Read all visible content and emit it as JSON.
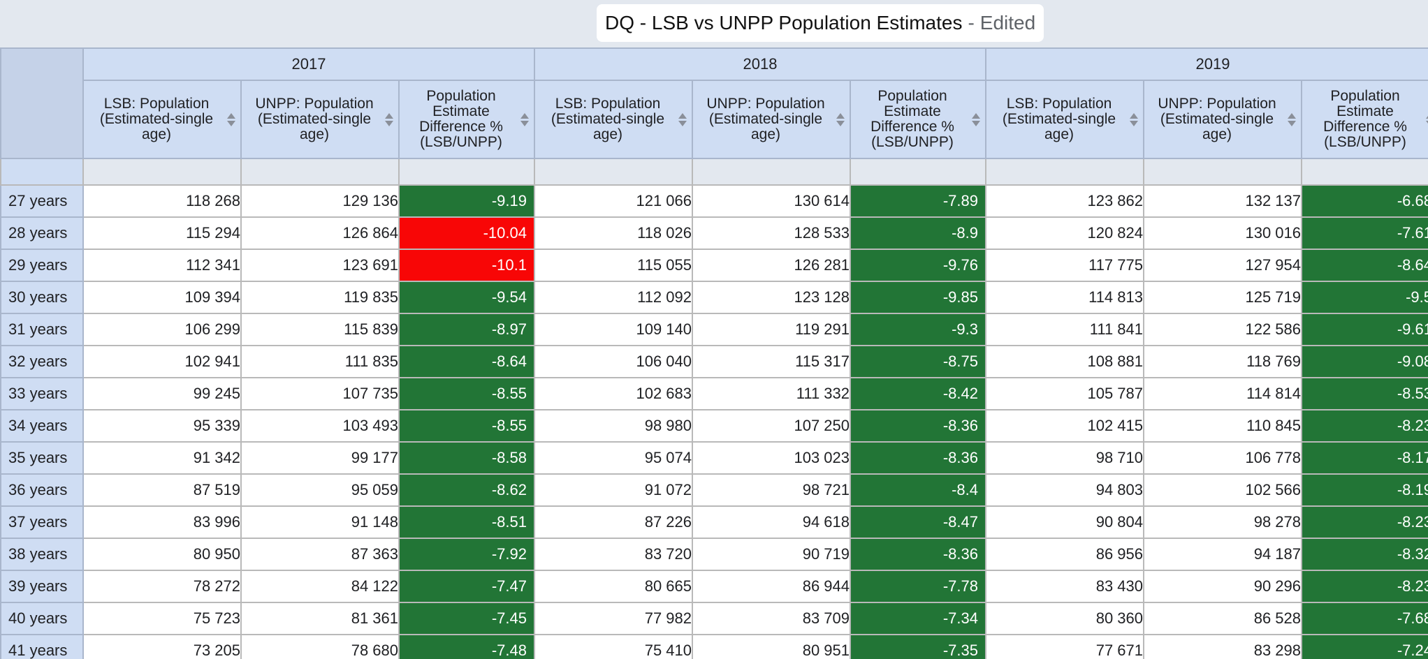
{
  "title": {
    "main": "DQ - LSB vs UNPP Population Estimates",
    "separator": "-",
    "status": "Edited"
  },
  "colors": {
    "good": "#227536",
    "bad": "#f80606",
    "header_bg": "#cfddf3"
  },
  "years": [
    "2017",
    "2018",
    "2019"
  ],
  "measures": [
    "LSB: Population (Estimated-single age)",
    "UNPP: Population (Estimated-single age)",
    "Population Estimate Difference % (LSB/UNPP)"
  ],
  "rows": [
    {
      "label": "27 years",
      "cells": [
        {
          "lsb": "118 268",
          "unpp": "129 136",
          "diff": "-9.19",
          "status": "green"
        },
        {
          "lsb": "121 066",
          "unpp": "130 614",
          "diff": "-7.89",
          "status": "green"
        },
        {
          "lsb": "123 862",
          "unpp": "132 137",
          "diff": "-6.68",
          "status": "green"
        }
      ]
    },
    {
      "label": "28 years",
      "cells": [
        {
          "lsb": "115 294",
          "unpp": "126 864",
          "diff": "-10.04",
          "status": "red"
        },
        {
          "lsb": "118 026",
          "unpp": "128 533",
          "diff": "-8.9",
          "status": "green"
        },
        {
          "lsb": "120 824",
          "unpp": "130 016",
          "diff": "-7.61",
          "status": "green"
        }
      ]
    },
    {
      "label": "29 years",
      "cells": [
        {
          "lsb": "112 341",
          "unpp": "123 691",
          "diff": "-10.1",
          "status": "red"
        },
        {
          "lsb": "115 055",
          "unpp": "126 281",
          "diff": "-9.76",
          "status": "green"
        },
        {
          "lsb": "117 775",
          "unpp": "127 954",
          "diff": "-8.64",
          "status": "green"
        }
      ]
    },
    {
      "label": "30 years",
      "cells": [
        {
          "lsb": "109 394",
          "unpp": "119 835",
          "diff": "-9.54",
          "status": "green"
        },
        {
          "lsb": "112 092",
          "unpp": "123 128",
          "diff": "-9.85",
          "status": "green"
        },
        {
          "lsb": "114 813",
          "unpp": "125 719",
          "diff": "-9.5",
          "status": "green"
        }
      ]
    },
    {
      "label": "31 years",
      "cells": [
        {
          "lsb": "106 299",
          "unpp": "115 839",
          "diff": "-8.97",
          "status": "green"
        },
        {
          "lsb": "109 140",
          "unpp": "119 291",
          "diff": "-9.3",
          "status": "green"
        },
        {
          "lsb": "111 841",
          "unpp": "122 586",
          "diff": "-9.61",
          "status": "green"
        }
      ]
    },
    {
      "label": "32 years",
      "cells": [
        {
          "lsb": "102 941",
          "unpp": "111 835",
          "diff": "-8.64",
          "status": "green"
        },
        {
          "lsb": "106 040",
          "unpp": "115 317",
          "diff": "-8.75",
          "status": "green"
        },
        {
          "lsb": "108 881",
          "unpp": "118 769",
          "diff": "-9.08",
          "status": "green"
        }
      ]
    },
    {
      "label": "33 years",
      "cells": [
        {
          "lsb": "99 245",
          "unpp": "107 735",
          "diff": "-8.55",
          "status": "green"
        },
        {
          "lsb": "102 683",
          "unpp": "111 332",
          "diff": "-8.42",
          "status": "green"
        },
        {
          "lsb": "105 787",
          "unpp": "114 814",
          "diff": "-8.53",
          "status": "green"
        }
      ]
    },
    {
      "label": "34 years",
      "cells": [
        {
          "lsb": "95 339",
          "unpp": "103 493",
          "diff": "-8.55",
          "status": "green"
        },
        {
          "lsb": "98 980",
          "unpp": "107 250",
          "diff": "-8.36",
          "status": "green"
        },
        {
          "lsb": "102 415",
          "unpp": "110 845",
          "diff": "-8.23",
          "status": "green"
        }
      ]
    },
    {
      "label": "35 years",
      "cells": [
        {
          "lsb": "91 342",
          "unpp": "99 177",
          "diff": "-8.58",
          "status": "green"
        },
        {
          "lsb": "95 074",
          "unpp": "103 023",
          "diff": "-8.36",
          "status": "green"
        },
        {
          "lsb": "98 710",
          "unpp": "106 778",
          "diff": "-8.17",
          "status": "green"
        }
      ]
    },
    {
      "label": "36 years",
      "cells": [
        {
          "lsb": "87 519",
          "unpp": "95 059",
          "diff": "-8.62",
          "status": "green"
        },
        {
          "lsb": "91 072",
          "unpp": "98 721",
          "diff": "-8.4",
          "status": "green"
        },
        {
          "lsb": "94 803",
          "unpp": "102 566",
          "diff": "-8.19",
          "status": "green"
        }
      ]
    },
    {
      "label": "37 years",
      "cells": [
        {
          "lsb": "83 996",
          "unpp": "91 148",
          "diff": "-8.51",
          "status": "green"
        },
        {
          "lsb": "87 226",
          "unpp": "94 618",
          "diff": "-8.47",
          "status": "green"
        },
        {
          "lsb": "90 804",
          "unpp": "98 278",
          "diff": "-8.23",
          "status": "green"
        }
      ]
    },
    {
      "label": "38 years",
      "cells": [
        {
          "lsb": "80 950",
          "unpp": "87 363",
          "diff": "-7.92",
          "status": "green"
        },
        {
          "lsb": "83 720",
          "unpp": "90 719",
          "diff": "-8.36",
          "status": "green"
        },
        {
          "lsb": "86 956",
          "unpp": "94 187",
          "diff": "-8.32",
          "status": "green"
        }
      ]
    },
    {
      "label": "39 years",
      "cells": [
        {
          "lsb": "78 272",
          "unpp": "84 122",
          "diff": "-7.47",
          "status": "green"
        },
        {
          "lsb": "80 665",
          "unpp": "86 944",
          "diff": "-7.78",
          "status": "green"
        },
        {
          "lsb": "83 430",
          "unpp": "90 296",
          "diff": "-8.23",
          "status": "green"
        }
      ]
    },
    {
      "label": "40 years",
      "cells": [
        {
          "lsb": "75 723",
          "unpp": "81 361",
          "diff": "-7.45",
          "status": "green"
        },
        {
          "lsb": "77 982",
          "unpp": "83 709",
          "diff": "-7.34",
          "status": "green"
        },
        {
          "lsb": "80 360",
          "unpp": "86 528",
          "diff": "-7.68",
          "status": "green"
        }
      ]
    },
    {
      "label": "41 years",
      "cells": [
        {
          "lsb": "73 205",
          "unpp": "78 680",
          "diff": "-7.48",
          "status": "green"
        },
        {
          "lsb": "75 410",
          "unpp": "80 951",
          "diff": "-7.35",
          "status": "green"
        },
        {
          "lsb": "77 671",
          "unpp": "83 298",
          "diff": "-7.24",
          "status": "green"
        }
      ]
    }
  ]
}
